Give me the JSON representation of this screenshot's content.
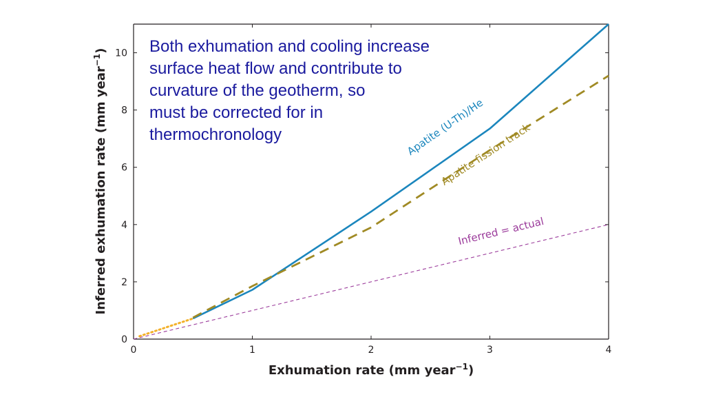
{
  "annotation": {
    "text": "Both exhumation and cooling increase\nsurface heat flow and contribute to\ncurvature of the geotherm, so\nmust be corrected for in\nthermochronology"
  },
  "chart_data": {
    "type": "line",
    "title": "",
    "xlabel": "Exhumation rate (mm year",
    "xlabel_sup": "−1",
    "xlabel_close": ")",
    "ylabel": "Inferred exhumation rate (mm year",
    "ylabel_sup": "−1",
    "ylabel_close": ")",
    "xlim": [
      0,
      4
    ],
    "ylim": [
      0,
      11
    ],
    "xticks": [
      0,
      1,
      2,
      3,
      4
    ],
    "yticks": [
      0,
      2,
      4,
      6,
      8,
      10
    ],
    "grid": false,
    "series": [
      {
        "name": "Apatite (U-Th)/He",
        "color": "#1b86bd",
        "style": "solid",
        "x": [
          0.5,
          1.0,
          2.0,
          3.0,
          4.0
        ],
        "y": [
          0.72,
          1.72,
          4.45,
          7.35,
          11.0
        ]
      },
      {
        "name": "Apatite fission track",
        "color": "#a08a24",
        "style": "dashed",
        "x": [
          0.5,
          1.0,
          2.0,
          3.0,
          4.0
        ],
        "y": [
          0.75,
          1.85,
          3.9,
          6.6,
          9.2
        ]
      },
      {
        "name": "Inferred = actual",
        "color": "#9b3b9b",
        "style": "dashed-thin",
        "x": [
          0.0,
          4.0
        ],
        "y": [
          0.0,
          4.0
        ]
      },
      {
        "name": "",
        "color": "#f3b12a",
        "style": "dotted",
        "x": [
          0.05,
          0.5
        ],
        "y": [
          0.1,
          0.72
        ]
      }
    ]
  }
}
